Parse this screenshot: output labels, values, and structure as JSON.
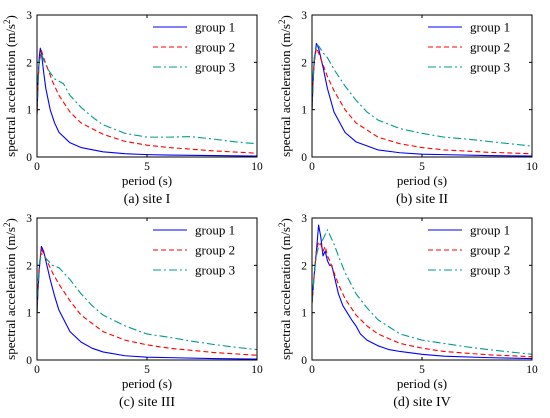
{
  "chart_data": [
    {
      "type": "line",
      "caption": "(a) site I",
      "xlabel": "period (s)",
      "ylabel": "spectral acceleration (m/s",
      "ylabel_sup": "2",
      "ylabel_close": ")",
      "xlim": [
        0,
        10
      ],
      "ylim": [
        0,
        3
      ],
      "xticks": [
        "0",
        "5",
        "10"
      ],
      "yticks": [
        "0",
        "1",
        "2",
        "3"
      ],
      "legend_position": "top-right",
      "series": [
        {
          "name": "group 1",
          "color": "#0000ff",
          "dash": "solid",
          "x": [
            0,
            0.05,
            0.1,
            0.15,
            0.2,
            0.3,
            0.4,
            0.6,
            0.8,
            1.0,
            1.5,
            2.0,
            3.0,
            4.0,
            5.0,
            6.0,
            8.0,
            10.0
          ],
          "y": [
            0.9,
            1.6,
            2.1,
            2.3,
            2.2,
            1.8,
            1.45,
            1.0,
            0.72,
            0.52,
            0.3,
            0.2,
            0.11,
            0.07,
            0.05,
            0.04,
            0.03,
            0.02
          ]
        },
        {
          "name": "group 2",
          "color": "#ff0000",
          "dash": "5,3",
          "x": [
            0,
            0.05,
            0.1,
            0.2,
            0.3,
            0.5,
            0.7,
            1.0,
            1.5,
            2.0,
            3.0,
            4.0,
            5.0,
            6.0,
            8.0,
            10.0
          ],
          "y": [
            0.9,
            1.6,
            2.0,
            2.25,
            2.1,
            1.85,
            1.6,
            1.3,
            0.95,
            0.72,
            0.48,
            0.33,
            0.25,
            0.2,
            0.13,
            0.08
          ]
        },
        {
          "name": "group 3",
          "color": "#009b8d",
          "dash": "8,3,2,3",
          "x": [
            0,
            0.05,
            0.1,
            0.2,
            0.3,
            0.5,
            0.8,
            1.0,
            1.2,
            1.5,
            2.0,
            2.5,
            3.0,
            4.0,
            5.0,
            6.0,
            7.0,
            8.0,
            9.0,
            10.0
          ],
          "y": [
            0.9,
            1.7,
            2.0,
            2.2,
            2.05,
            1.85,
            1.65,
            1.6,
            1.55,
            1.3,
            1.05,
            0.85,
            0.68,
            0.5,
            0.42,
            0.42,
            0.43,
            0.38,
            0.32,
            0.28
          ]
        }
      ]
    },
    {
      "type": "line",
      "caption": "(b) site II",
      "xlabel": "period (s)",
      "ylabel": "spectral acceleration (m/s",
      "ylabel_sup": "2",
      "ylabel_close": ")",
      "xlim": [
        0,
        10
      ],
      "ylim": [
        0,
        3
      ],
      "xticks": [
        "0",
        "5",
        "10"
      ],
      "yticks": [
        "0",
        "1",
        "2",
        "3"
      ],
      "legend_position": "top-right",
      "series": [
        {
          "name": "group 1",
          "color": "#0000ff",
          "dash": "solid",
          "x": [
            0,
            0.05,
            0.1,
            0.2,
            0.3,
            0.4,
            0.5,
            0.7,
            1.0,
            1.5,
            2.0,
            3.0,
            4.0,
            5.0,
            6.0,
            8.0,
            10.0
          ],
          "y": [
            1.0,
            1.6,
            2.0,
            2.4,
            2.3,
            2.1,
            1.9,
            1.45,
            0.95,
            0.52,
            0.32,
            0.15,
            0.09,
            0.06,
            0.05,
            0.03,
            0.02
          ]
        },
        {
          "name": "group 2",
          "color": "#ff0000",
          "dash": "5,3",
          "x": [
            0,
            0.05,
            0.1,
            0.2,
            0.3,
            0.5,
            0.7,
            1.0,
            1.5,
            2.0,
            3.0,
            4.0,
            5.0,
            6.0,
            8.0,
            10.0
          ],
          "y": [
            1.0,
            1.6,
            2.0,
            2.3,
            2.2,
            1.95,
            1.7,
            1.4,
            1.0,
            0.72,
            0.42,
            0.28,
            0.2,
            0.15,
            0.1,
            0.07
          ]
        },
        {
          "name": "group 3",
          "color": "#009b8d",
          "dash": "8,3,2,3",
          "x": [
            0,
            0.05,
            0.1,
            0.2,
            0.3,
            0.5,
            0.7,
            1.0,
            1.5,
            2.0,
            2.5,
            3.0,
            4.0,
            5.0,
            6.0,
            7.0,
            8.0,
            9.0,
            10.0
          ],
          "y": [
            1.0,
            1.7,
            2.1,
            2.35,
            2.35,
            2.2,
            2.1,
            1.85,
            1.5,
            1.2,
            0.95,
            0.78,
            0.6,
            0.5,
            0.42,
            0.38,
            0.33,
            0.28,
            0.23
          ]
        }
      ]
    },
    {
      "type": "line",
      "caption": "(c) site III",
      "xlabel": "period (s)",
      "ylabel": "spectral acceleration (m/s",
      "ylabel_sup": "2",
      "ylabel_close": ")",
      "xlim": [
        0,
        10
      ],
      "ylim": [
        0,
        3
      ],
      "xticks": [
        "0",
        "5",
        "10"
      ],
      "yticks": [
        "0",
        "1",
        "2",
        "3"
      ],
      "legend_position": "top-right",
      "series": [
        {
          "name": "group 1",
          "color": "#0000ff",
          "dash": "solid",
          "x": [
            0,
            0.05,
            0.1,
            0.2,
            0.3,
            0.4,
            0.6,
            0.8,
            1.0,
            1.5,
            2.0,
            2.5,
            3.0,
            4.0,
            5.0,
            6.0,
            8.0,
            10.0
          ],
          "y": [
            1.0,
            1.5,
            1.9,
            2.4,
            2.3,
            2.1,
            1.7,
            1.35,
            1.05,
            0.6,
            0.38,
            0.25,
            0.17,
            0.09,
            0.06,
            0.05,
            0.03,
            0.02
          ]
        },
        {
          "name": "group 2",
          "color": "#ff0000",
          "dash": "5,3",
          "x": [
            0,
            0.05,
            0.1,
            0.2,
            0.3,
            0.5,
            0.7,
            1.0,
            1.5,
            2.0,
            3.0,
            4.0,
            5.0,
            6.0,
            8.0,
            10.0
          ],
          "y": [
            1.0,
            1.6,
            2.0,
            2.35,
            2.25,
            2.05,
            1.85,
            1.6,
            1.25,
            0.95,
            0.6,
            0.42,
            0.32,
            0.25,
            0.16,
            0.1
          ]
        },
        {
          "name": "group 3",
          "color": "#009b8d",
          "dash": "8,3,2,3",
          "x": [
            0,
            0.05,
            0.1,
            0.2,
            0.3,
            0.5,
            0.7,
            1.0,
            1.5,
            2.0,
            2.5,
            3.0,
            4.0,
            5.0,
            6.0,
            7.0,
            8.0,
            9.0,
            10.0
          ],
          "y": [
            1.0,
            1.6,
            2.0,
            2.25,
            2.2,
            2.1,
            2.0,
            1.95,
            1.7,
            1.4,
            1.15,
            0.95,
            0.72,
            0.55,
            0.48,
            0.4,
            0.33,
            0.27,
            0.22
          ]
        }
      ]
    },
    {
      "type": "line",
      "caption": "(d) site IV",
      "xlabel": "period (s)",
      "ylabel": "spectral acceleration (m/s",
      "ylabel_sup": "2",
      "ylabel_close": ")",
      "xlim": [
        0,
        10
      ],
      "ylim": [
        0,
        3
      ],
      "xticks": [
        "0",
        "5",
        "10"
      ],
      "yticks": [
        "0",
        "1",
        "2",
        "3"
      ],
      "legend_position": "top-right",
      "series": [
        {
          "name": "group 1",
          "color": "#0000ff",
          "dash": "solid",
          "x": [
            0,
            0.1,
            0.2,
            0.3,
            0.4,
            0.5,
            0.6,
            0.7,
            0.8,
            0.9,
            1.0,
            1.2,
            1.4,
            1.6,
            1.8,
            2.0,
            2.2,
            2.5,
            3.0,
            3.5,
            4.0,
            5.0,
            6.0,
            8.0,
            10.0
          ],
          "y": [
            1.2,
            1.8,
            2.3,
            2.85,
            2.6,
            2.2,
            2.3,
            2.1,
            2.0,
            2.0,
            1.8,
            1.4,
            1.15,
            1.0,
            0.85,
            0.72,
            0.55,
            0.42,
            0.3,
            0.22,
            0.18,
            0.12,
            0.08,
            0.05,
            0.03
          ]
        },
        {
          "name": "group 2",
          "color": "#ff0000",
          "dash": "5,3",
          "x": [
            0,
            0.1,
            0.2,
            0.3,
            0.4,
            0.5,
            0.6,
            0.7,
            0.8,
            1.0,
            1.2,
            1.5,
            2.0,
            2.5,
            3.0,
            4.0,
            5.0,
            6.0,
            8.0,
            10.0
          ],
          "y": [
            1.2,
            1.8,
            2.3,
            2.5,
            2.45,
            2.3,
            2.4,
            2.2,
            2.1,
            1.85,
            1.6,
            1.3,
            0.95,
            0.72,
            0.55,
            0.35,
            0.25,
            0.18,
            0.11,
            0.07
          ]
        },
        {
          "name": "group 3",
          "color": "#009b8d",
          "dash": "8,3,2,3",
          "x": [
            0,
            0.1,
            0.2,
            0.3,
            0.5,
            0.7,
            0.8,
            1.0,
            1.2,
            1.5,
            2.0,
            2.5,
            3.0,
            4.0,
            5.0,
            6.0,
            7.0,
            8.0,
            9.0,
            10.0
          ],
          "y": [
            1.2,
            1.8,
            2.2,
            2.4,
            2.55,
            2.75,
            2.65,
            2.45,
            2.2,
            1.85,
            1.4,
            1.1,
            0.85,
            0.55,
            0.42,
            0.35,
            0.28,
            0.22,
            0.17,
            0.12
          ]
        }
      ]
    }
  ]
}
